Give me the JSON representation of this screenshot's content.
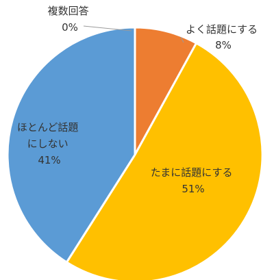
{
  "chart_data": {
    "type": "pie",
    "slices": [
      {
        "label": "よく話題にする",
        "value": 8,
        "value_label": "8%",
        "color": "#ED7D31"
      },
      {
        "label": "たまに話題にする",
        "value": 51,
        "value_label": "51%",
        "color": "#FFC000"
      },
      {
        "label": "ほとんど話題にしない",
        "value": 41,
        "value_label": "41%",
        "color": "#5B9BD5"
      },
      {
        "label": "複数回答",
        "value": 0,
        "value_label": "0%",
        "color": "#A5A5A5"
      }
    ],
    "slice_label_lines": {
      "often": [
        "よく話題にする",
        "8%"
      ],
      "sometimes": [
        "たまに話題にする",
        "51%"
      ],
      "rarely": [
        "ほとんど話題",
        "にしない",
        "41%"
      ],
      "multiple": [
        "複数回答",
        "0%"
      ]
    },
    "start_angle_deg": 0,
    "direction": "clockwise",
    "legend": false
  }
}
